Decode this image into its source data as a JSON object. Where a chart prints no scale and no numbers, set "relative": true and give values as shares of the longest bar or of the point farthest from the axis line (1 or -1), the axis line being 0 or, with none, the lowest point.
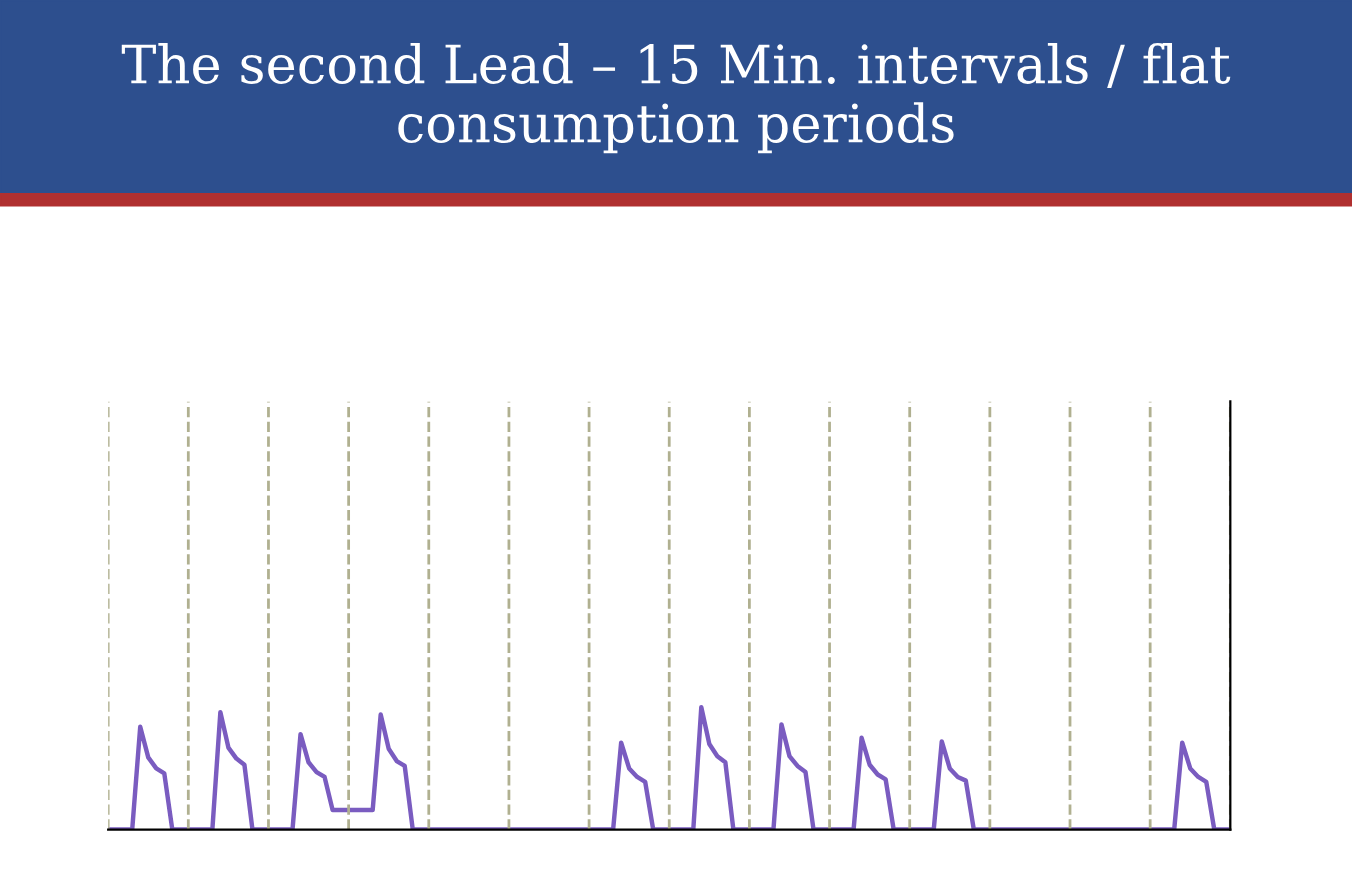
{
  "chart_data": {
    "type": "line",
    "title": "The second Lead – 15 Min. intervals / flat consumption periods",
    "relative": true,
    "categories": [
      null,
      null,
      null,
      null,
      null,
      null,
      null,
      null,
      null,
      null,
      null,
      null,
      null,
      null,
      null,
      null,
      null,
      null,
      null,
      null,
      null,
      null,
      null,
      null,
      null,
      null,
      null,
      null,
      null,
      null,
      null,
      null,
      null,
      null,
      null,
      null,
      null,
      null,
      null,
      null,
      null,
      null,
      null,
      null,
      null,
      null,
      null,
      null,
      null,
      null,
      null,
      null,
      null,
      null,
      null,
      null,
      null,
      null,
      null,
      null,
      null,
      null,
      null,
      null,
      null,
      null,
      null,
      null,
      null,
      null,
      null,
      null,
      null,
      null,
      null,
      null,
      null,
      null,
      null,
      null,
      null,
      null,
      null,
      null,
      null,
      null,
      null,
      null,
      null,
      null,
      null,
      null,
      null,
      null,
      null,
      null,
      null,
      null,
      null,
      null,
      null,
      null,
      null,
      null,
      null,
      null,
      null,
      null,
      null,
      null,
      null,
      null,
      null,
      null,
      null,
      null,
      null,
      null,
      null,
      null,
      null,
      null,
      null,
      null,
      null,
      null,
      null,
      null,
      null,
      null,
      null,
      null,
      null,
      null,
      null,
      null,
      null,
      null,
      null,
      null,
      null
    ],
    "grid": "x",
    "marker": "none",
    "line_style": "solid",
    "series": [
      {
        "color": "#7a5cc0",
        "values": [
          0,
          0,
          0,
          0,
          0.84,
          0.59,
          0.5,
          0.46,
          0,
          0,
          0,
          0,
          0,
          0,
          0.96,
          0.67,
          0.58,
          0.53,
          0,
          0,
          0,
          0,
          0,
          0,
          0.78,
          0.55,
          0.47,
          0.43,
          0.16,
          0.16,
          0.16,
          0.16,
          0.16,
          0.16,
          0.94,
          0.66,
          0.56,
          0.52,
          0,
          0,
          0,
          0,
          0,
          0,
          0,
          0,
          0,
          0,
          0,
          0,
          0,
          0,
          0,
          0,
          0,
          0,
          0,
          0,
          0,
          0,
          0,
          0,
          0,
          0,
          0.71,
          0.5,
          0.43,
          0.39,
          0,
          0,
          0,
          0,
          0,
          0,
          1.0,
          0.7,
          0.6,
          0.55,
          0,
          0,
          0,
          0,
          0,
          0,
          0.86,
          0.6,
          0.52,
          0.47,
          0,
          0,
          0,
          0,
          0,
          0,
          0.75,
          0.53,
          0.45,
          0.41,
          0,
          0,
          0,
          0,
          0,
          0,
          0.72,
          0.5,
          0.43,
          0.4,
          0,
          0,
          0,
          0,
          0,
          0,
          0,
          0,
          0,
          0,
          0,
          0,
          0,
          0,
          0,
          0,
          0,
          0,
          0,
          0,
          0,
          0,
          0,
          0,
          0,
          0,
          0.71,
          0.5,
          0.43,
          0.39,
          0,
          0,
          0
        ]
      }
    ]
  }
}
